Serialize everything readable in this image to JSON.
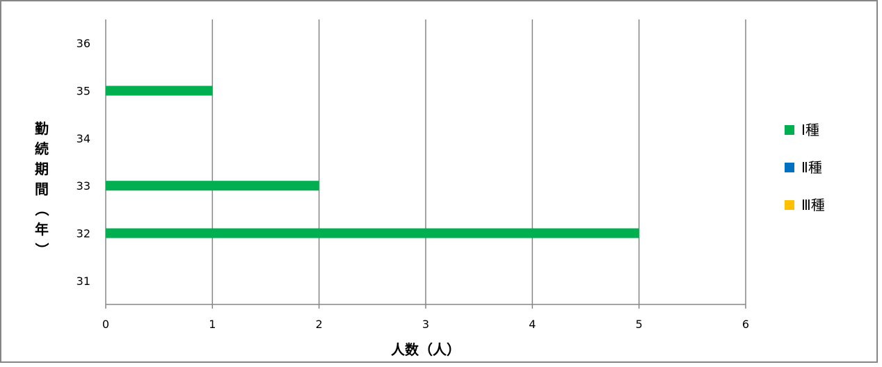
{
  "chart_data": {
    "type": "bar",
    "orientation": "horizontal",
    "categories": [
      "31",
      "32",
      "33",
      "34",
      "35",
      "36"
    ],
    "series": [
      {
        "name": "Ⅰ種",
        "color": "#00B050",
        "values": [
          0,
          5,
          2,
          0,
          1,
          0
        ]
      },
      {
        "name": "Ⅱ種",
        "color": "#0070C0",
        "values": [
          0,
          0,
          0,
          0,
          0,
          0
        ]
      },
      {
        "name": "Ⅲ種",
        "color": "#FFC000",
        "values": [
          0,
          0,
          0,
          0,
          0,
          0
        ]
      }
    ],
    "x_ticks": [
      "0",
      "1",
      "2",
      "3",
      "4",
      "5",
      "6"
    ],
    "xlim": [
      0,
      6
    ],
    "xlabel": "人数（人）",
    "ylabel": "勤続期間（年）",
    "grid": "vertical",
    "legend_position": "right"
  },
  "colors": {
    "gridline": "#868686",
    "frame": "#868686"
  }
}
